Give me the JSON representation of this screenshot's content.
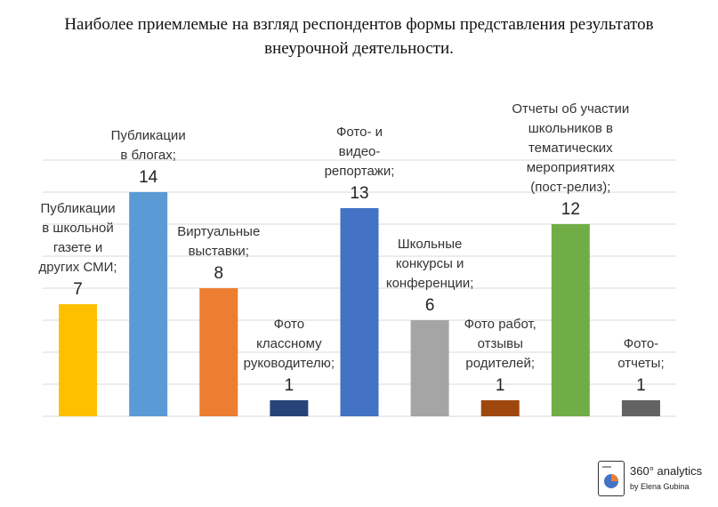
{
  "chart_data": {
    "type": "bar",
    "title_lines": [
      "Наиболее приемлемые на взгляд респондентов формы представления результатов",
      "внеурочной деятельности."
    ],
    "categories": [
      "Публикации\nв школьной\nгазете и\nдругих СМИ;",
      "Публикации\nв блогах;",
      "Виртуальные\nвыставки;",
      "Фото\nклассному\nруководителю;",
      "Фото- и\nвидео-\nрепортажи;",
      "Школьные\nконкурсы и\nконференции;",
      "Фото работ,\nотзывы\nродителей;",
      "Отчеты об участии\nшкольников в\nтематических\nмероприятиях\n(пост-релиз);",
      "Фото-\nотчеты;"
    ],
    "values": [
      7,
      14,
      8,
      1,
      13,
      6,
      1,
      12,
      1
    ],
    "value_labels": [
      "7",
      "14",
      "8",
      "1",
      "13",
      "6",
      "1",
      "12",
      "1"
    ],
    "colors": [
      "#ffc000",
      "#5b9bd5",
      "#ed7d31",
      "#264478",
      "#4472c4",
      "#a5a5a5",
      "#9e480e",
      "#70ad47",
      "#636363"
    ],
    "ylim": [
      0,
      16
    ],
    "grid": true,
    "xlabel": "",
    "ylabel": ""
  },
  "logo": {
    "line1": "360° analytics",
    "line2": "by Elena Gubina"
  }
}
